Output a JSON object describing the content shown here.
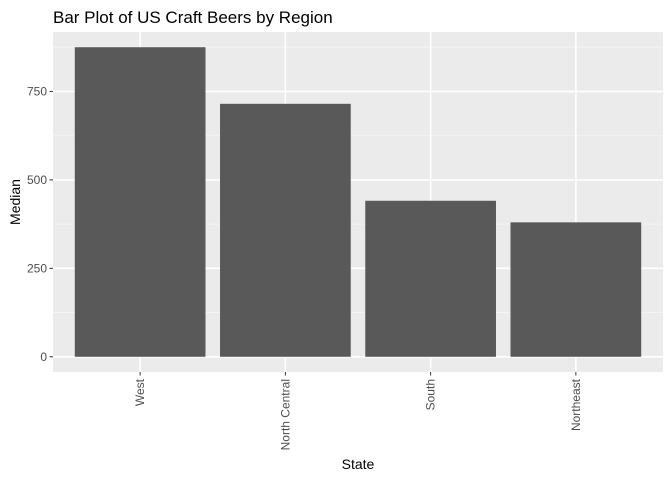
{
  "chart_data": {
    "type": "bar",
    "title": "Bar Plot of US Craft Beers by Region",
    "xlabel": "State",
    "ylabel": "Median",
    "categories": [
      "West",
      "North Central",
      "South",
      "Northeast"
    ],
    "values": [
      875,
      715,
      441,
      380
    ],
    "ylim": [
      -43,
      918
    ],
    "yticks": [
      0,
      250,
      500,
      750
    ],
    "grid": true,
    "legend": "none",
    "colors": {
      "bar": "#595959",
      "panel": "#ebebeb",
      "grid_major": "#ffffff",
      "grid_minor": "#f5f5f5",
      "tick_label": "#4d4d4d",
      "tick_mark": "#333333",
      "text": "#000000"
    }
  }
}
